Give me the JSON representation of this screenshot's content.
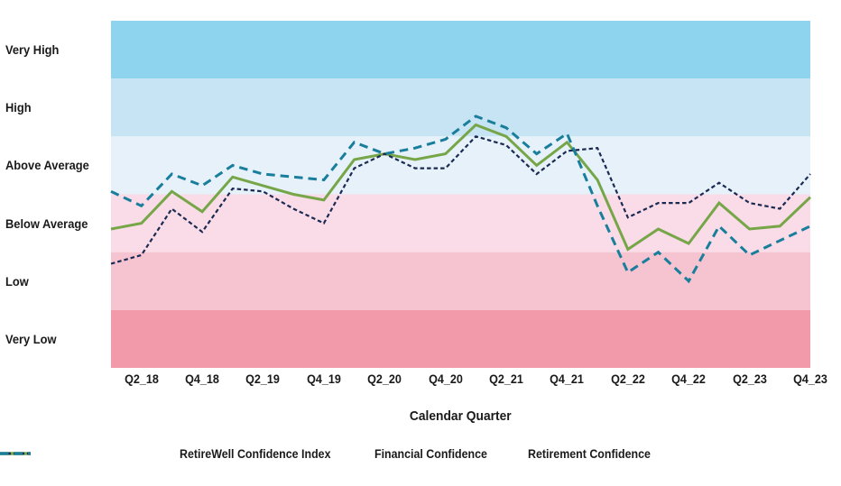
{
  "chart_data": {
    "type": "line",
    "title": "",
    "xlabel": "Calendar Quarter",
    "ylabel": "",
    "ylim": [
      0,
      6
    ],
    "grid": false,
    "legend_position": "bottom",
    "x": [
      "Q1_18",
      "Q2_18",
      "Q3_18",
      "Q4_18",
      "Q1_19",
      "Q2_19",
      "Q3_19",
      "Q4_19",
      "Q1_20",
      "Q2_20",
      "Q3_20",
      "Q4_20",
      "Q1_21",
      "Q2_21",
      "Q3_21",
      "Q4_21",
      "Q1_22",
      "Q2_22",
      "Q3_22",
      "Q4_22",
      "Q1_23",
      "Q2_23",
      "Q3_23",
      "Q4_23"
    ],
    "x_tick_labels": [
      "Q2_18",
      "Q4_18",
      "Q2_19",
      "Q4_19",
      "Q2_20",
      "Q4_20",
      "Q2_21",
      "Q4_21",
      "Q2_22",
      "Q4_22",
      "Q2_23",
      "Q4_23"
    ],
    "bands_top_to_bottom": [
      {
        "label": "Very High",
        "color": "#8FD4EE",
        "range": [
          5,
          6
        ]
      },
      {
        "label": "High",
        "color": "#C6E4F3",
        "range": [
          4,
          5
        ]
      },
      {
        "label": "Above Average",
        "color": "#E6F1FA",
        "range": [
          3,
          4
        ]
      },
      {
        "label": "Below Average",
        "color": "#F9DCE7",
        "range": [
          2,
          3
        ]
      },
      {
        "label": "Low",
        "color": "#F6C3D0",
        "range": [
          1,
          2
        ]
      },
      {
        "label": "Very Low",
        "color": "#F29AA9",
        "range": [
          0,
          1
        ]
      }
    ],
    "series": [
      {
        "name": "RetireWell Confidence Index",
        "color": "#76A648",
        "style": "solid",
        "values": [
          2.4,
          2.5,
          3.05,
          2.7,
          3.3,
          3.15,
          3.0,
          2.9,
          3.6,
          3.7,
          3.6,
          3.7,
          4.2,
          4.0,
          3.5,
          3.9,
          3.25,
          2.05,
          2.4,
          2.15,
          2.85,
          2.4,
          2.45,
          2.95
        ]
      },
      {
        "name": "Financial Confidence",
        "color": "#1B2A52",
        "style": "dash-fine",
        "values": [
          1.8,
          1.95,
          2.75,
          2.35,
          3.1,
          3.05,
          2.75,
          2.5,
          3.45,
          3.7,
          3.45,
          3.45,
          4.0,
          3.85,
          3.35,
          3.75,
          3.8,
          2.6,
          2.85,
          2.85,
          3.2,
          2.85,
          2.75,
          3.35
        ]
      },
      {
        "name": "Retirement Confidence",
        "color": "#197E9B",
        "style": "dash",
        "values": [
          3.05,
          2.8,
          3.35,
          3.15,
          3.5,
          3.35,
          3.3,
          3.25,
          3.9,
          3.7,
          3.8,
          3.95,
          4.35,
          4.15,
          3.7,
          4.05,
          2.8,
          1.65,
          2.0,
          1.5,
          2.45,
          1.95,
          2.2,
          2.45
        ]
      }
    ]
  },
  "labels": {
    "x_axis_title": "Calendar Quarter"
  },
  "colors": {
    "text": "#1a1a1a",
    "background": "#ffffff"
  }
}
